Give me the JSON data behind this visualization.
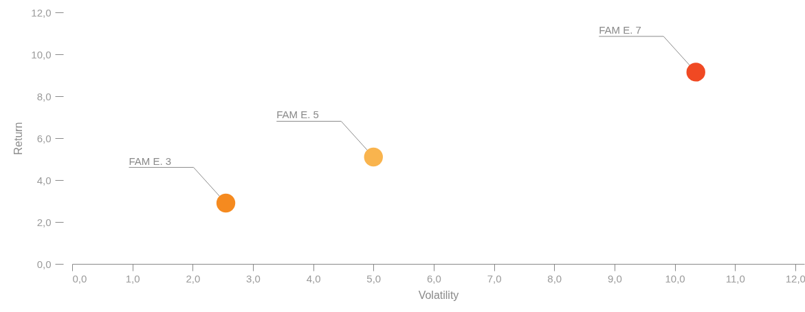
{
  "chart_data": {
    "type": "scatter",
    "xlabel": "Volatility",
    "ylabel": "Return",
    "marker": "circle",
    "grid": false,
    "xlim": [
      0,
      12.15
    ],
    "ylim": [
      0,
      12
    ],
    "xticks": [
      {
        "value": 0,
        "label": "0,0"
      },
      {
        "value": 1,
        "label": "1,0"
      },
      {
        "value": 2,
        "label": "2,0"
      },
      {
        "value": 3,
        "label": "3,0"
      },
      {
        "value": 4,
        "label": "4,0"
      },
      {
        "value": 5,
        "label": "5,0"
      },
      {
        "value": 6,
        "label": "6,0"
      },
      {
        "value": 7,
        "label": "7,0"
      },
      {
        "value": 8,
        "label": "8,0"
      },
      {
        "value": 9,
        "label": "9,0"
      },
      {
        "value": 10,
        "label": "10,0"
      },
      {
        "value": 11,
        "label": "11,0"
      },
      {
        "value": 12,
        "label": "12,0"
      }
    ],
    "yticks": [
      {
        "value": 0,
        "label": "0,0"
      },
      {
        "value": 2,
        "label": "2,0"
      },
      {
        "value": 4,
        "label": "4,0"
      },
      {
        "value": 6,
        "label": "6,0"
      },
      {
        "value": 8,
        "label": "8,0"
      },
      {
        "value": 10,
        "label": "10,0"
      },
      {
        "value": 12,
        "label": "12,0"
      }
    ],
    "series": [
      {
        "color": "#f58a1f",
        "x": [
          2.55
        ],
        "values": [
          2.9
        ]
      },
      {
        "color": "#f9b44e",
        "x": [
          5.0
        ],
        "values": [
          5.1
        ]
      },
      {
        "color": "#f04923",
        "x": [
          10.35
        ],
        "values": [
          9.15
        ]
      }
    ],
    "annotations": [
      "FAM E. 3",
      "FAM E. 5",
      "FAM E. 7"
    ]
  }
}
